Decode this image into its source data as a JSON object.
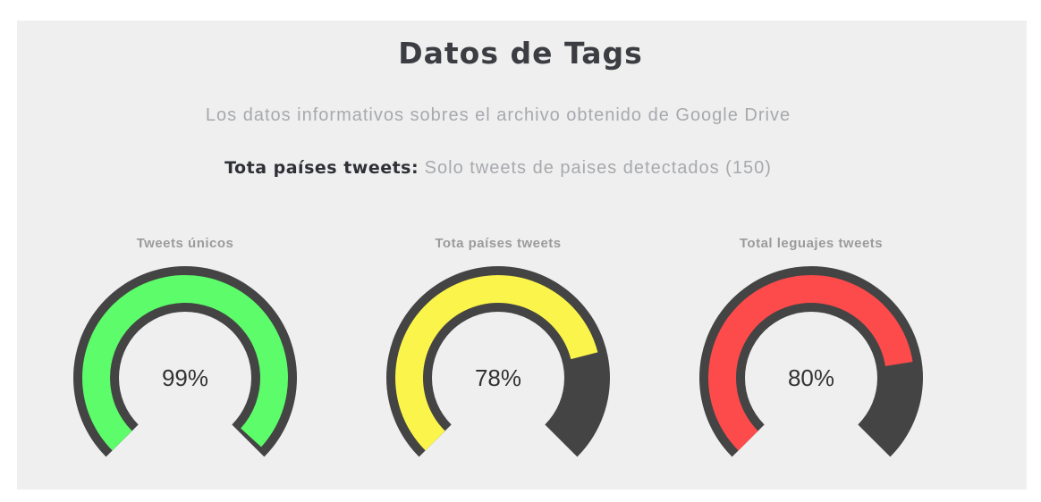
{
  "header": {
    "title": "Datos de Tags",
    "subtitle": "Los datos informativos sobres el archivo obtenido de Google Drive",
    "summary_label": "Tota países tweets:",
    "summary_value": "Solo tweets de paises detectados (150)"
  },
  "colors": {
    "track": "#444444",
    "panel": "#efefef"
  },
  "chart_data": [
    {
      "type": "gauge",
      "title": "Tweets únicos",
      "value": 99,
      "label": "99%",
      "color": "#5dfc6a"
    },
    {
      "type": "gauge",
      "title": "Tota países tweets",
      "value": 78,
      "label": "78%",
      "color": "#fbf54b"
    },
    {
      "type": "gauge",
      "title": "Total leguajes tweets",
      "value": 80,
      "label": "80%",
      "color": "#fd4a4b"
    }
  ]
}
